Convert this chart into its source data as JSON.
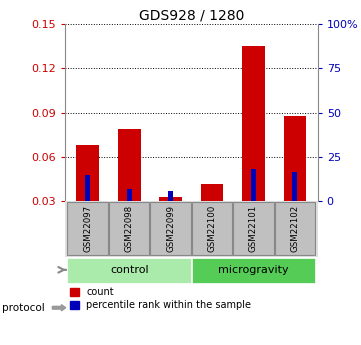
{
  "title": "GDS928 / 1280",
  "categories": [
    "GSM22097",
    "GSM22098",
    "GSM22099",
    "GSM22100",
    "GSM22101",
    "GSM22102"
  ],
  "count_values": [
    0.068,
    0.079,
    0.033,
    0.042,
    0.135,
    0.088
  ],
  "percentile_values": [
    0.048,
    0.038,
    0.037,
    0.03,
    0.052,
    0.05
  ],
  "ylim_left": [
    0.03,
    0.15
  ],
  "ylim_right": [
    0,
    100
  ],
  "yticks_left": [
    0.03,
    0.06,
    0.09,
    0.12,
    0.15
  ],
  "ytick_labels_left": [
    "0.03",
    "0.06",
    "0.09",
    "0.12",
    "0.15"
  ],
  "yticks_right": [
    0,
    25,
    50,
    75,
    100
  ],
  "ytick_labels_right": [
    "0",
    "25",
    "50",
    "75",
    "100%"
  ],
  "bar_color_red": "#cc0000",
  "bar_color_blue": "#0000bb",
  "bar_width": 0.55,
  "blue_bar_width": 0.12,
  "groups": [
    {
      "label": "control",
      "indices": [
        0,
        1,
        2
      ],
      "color": "#aaeaaa"
    },
    {
      "label": "microgravity",
      "indices": [
        3,
        4,
        5
      ],
      "color": "#55cc55"
    }
  ],
  "protocol_label": "protocol",
  "legend_items": [
    {
      "label": "count",
      "color": "#cc0000"
    },
    {
      "label": "percentile rank within the sample",
      "color": "#0000bb"
    }
  ],
  "tick_label_color_left": "#cc0000",
  "tick_label_color_right": "#0000bb",
  "bar_bottom": 0.03,
  "label_box_color": "#c0c0c0",
  "label_box_edge": "#888888"
}
